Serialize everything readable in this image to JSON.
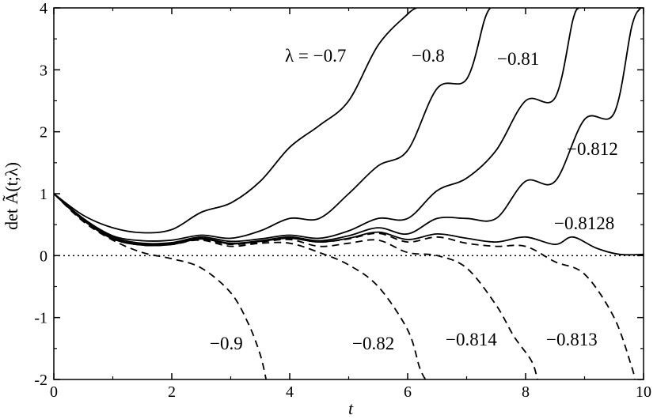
{
  "chart_data": {
    "type": "line",
    "title": "",
    "xlabel": "t",
    "ylabel": "det Ã(t;λ)",
    "xlim": [
      0,
      10
    ],
    "ylim": [
      -2,
      4
    ],
    "x_ticks": [
      0,
      2,
      4,
      6,
      8,
      10
    ],
    "y_ticks": [
      -2,
      -1,
      0,
      1,
      2,
      3,
      4
    ],
    "x_tick_labels": [
      "0",
      "2",
      "4",
      "6",
      "8",
      "10"
    ],
    "y_tick_labels": [
      "-2",
      "-1",
      "0",
      "1",
      "2",
      "3",
      "4"
    ],
    "reference_line": {
      "y": 0,
      "style": "dotted"
    },
    "grid": false,
    "series": [
      {
        "name": "λ = −0.7",
        "style": "solid",
        "points": [
          [
            0,
            1
          ],
          [
            0.5,
            0.65
          ],
          [
            1,
            0.45
          ],
          [
            1.5,
            0.37
          ],
          [
            2,
            0.42
          ],
          [
            2.5,
            0.7
          ],
          [
            3,
            0.85
          ],
          [
            3.5,
            1.2
          ],
          [
            4,
            1.75
          ],
          [
            4.5,
            2.1
          ],
          [
            5,
            2.5
          ],
          [
            5.5,
            3.4
          ],
          [
            6,
            3.9
          ],
          [
            6.15,
            4
          ]
        ]
      },
      {
        "name": "−0.8",
        "style": "solid",
        "points": [
          [
            0,
            1
          ],
          [
            0.5,
            0.6
          ],
          [
            1,
            0.32
          ],
          [
            1.5,
            0.24
          ],
          [
            2,
            0.25
          ],
          [
            2.5,
            0.33
          ],
          [
            3,
            0.28
          ],
          [
            3.5,
            0.4
          ],
          [
            4,
            0.6
          ],
          [
            4.5,
            0.6
          ],
          [
            5,
            1.0
          ],
          [
            5.5,
            1.45
          ],
          [
            6,
            1.7
          ],
          [
            6.5,
            2.7
          ],
          [
            7,
            2.85
          ],
          [
            7.3,
            3.8
          ],
          [
            7.4,
            4
          ]
        ]
      },
      {
        "name": "−0.81",
        "style": "solid",
        "points": [
          [
            0,
            1
          ],
          [
            0.5,
            0.58
          ],
          [
            1,
            0.3
          ],
          [
            1.5,
            0.2
          ],
          [
            2,
            0.21
          ],
          [
            2.5,
            0.3
          ],
          [
            3,
            0.23
          ],
          [
            3.5,
            0.27
          ],
          [
            4,
            0.33
          ],
          [
            4.5,
            0.28
          ],
          [
            5,
            0.4
          ],
          [
            5.5,
            0.6
          ],
          [
            6,
            0.6
          ],
          [
            6.5,
            1.05
          ],
          [
            7,
            1.25
          ],
          [
            7.5,
            1.7
          ],
          [
            8,
            2.5
          ],
          [
            8.5,
            2.55
          ],
          [
            8.8,
            3.8
          ],
          [
            8.9,
            4
          ]
        ]
      },
      {
        "name": "−0.812",
        "style": "solid",
        "points": [
          [
            0,
            1
          ],
          [
            0.5,
            0.57
          ],
          [
            1,
            0.28
          ],
          [
            1.5,
            0.18
          ],
          [
            2,
            0.19
          ],
          [
            2.5,
            0.28
          ],
          [
            3,
            0.2
          ],
          [
            3.5,
            0.24
          ],
          [
            4,
            0.3
          ],
          [
            4.5,
            0.24
          ],
          [
            5,
            0.32
          ],
          [
            5.5,
            0.45
          ],
          [
            6,
            0.35
          ],
          [
            6.5,
            0.6
          ],
          [
            7,
            0.6
          ],
          [
            7.5,
            0.6
          ],
          [
            8,
            1.2
          ],
          [
            8.5,
            1.2
          ],
          [
            9,
            2.2
          ],
          [
            9.5,
            2.3
          ],
          [
            9.8,
            3.7
          ],
          [
            9.95,
            4
          ]
        ]
      },
      {
        "name": "−0.8128",
        "style": "solid",
        "points": [
          [
            0,
            1
          ],
          [
            0.5,
            0.57
          ],
          [
            1,
            0.27
          ],
          [
            1.5,
            0.17
          ],
          [
            2,
            0.18
          ],
          [
            2.5,
            0.27
          ],
          [
            3,
            0.19
          ],
          [
            3.5,
            0.23
          ],
          [
            4,
            0.28
          ],
          [
            4.5,
            0.22
          ],
          [
            5,
            0.28
          ],
          [
            5.5,
            0.38
          ],
          [
            6,
            0.26
          ],
          [
            6.5,
            0.35
          ],
          [
            7,
            0.28
          ],
          [
            7.5,
            0.22
          ],
          [
            8,
            0.3
          ],
          [
            8.5,
            0.18
          ],
          [
            8.8,
            0.3
          ],
          [
            9.2,
            0.12
          ],
          [
            9.6,
            0.02
          ],
          [
            10,
            0.02
          ]
        ]
      },
      {
        "name": "−0.9",
        "style": "dashed",
        "points": [
          [
            0,
            1
          ],
          [
            0.5,
            0.55
          ],
          [
            1,
            0.25
          ],
          [
            1.5,
            0.05
          ],
          [
            2,
            -0.05
          ],
          [
            2.5,
            -0.2
          ],
          [
            3,
            -0.6
          ],
          [
            3.3,
            -1.1
          ],
          [
            3.5,
            -1.6
          ],
          [
            3.6,
            -2
          ]
        ]
      },
      {
        "name": "−0.82",
        "style": "dashed",
        "points": [
          [
            0,
            1
          ],
          [
            0.5,
            0.58
          ],
          [
            1,
            0.28
          ],
          [
            1.5,
            0.18
          ],
          [
            2,
            0.2
          ],
          [
            2.5,
            0.25
          ],
          [
            3,
            0.15
          ],
          [
            3.5,
            0.2
          ],
          [
            4,
            0.2
          ],
          [
            4.5,
            0.05
          ],
          [
            5,
            -0.15
          ],
          [
            5.5,
            -0.5
          ],
          [
            6,
            -1.2
          ],
          [
            6.2,
            -1.8
          ],
          [
            6.3,
            -2
          ]
        ]
      },
      {
        "name": "−0.814",
        "style": "dashed",
        "points": [
          [
            0,
            1
          ],
          [
            0.5,
            0.57
          ],
          [
            1,
            0.27
          ],
          [
            1.5,
            0.17
          ],
          [
            2,
            0.18
          ],
          [
            2.5,
            0.26
          ],
          [
            3,
            0.18
          ],
          [
            3.5,
            0.22
          ],
          [
            4,
            0.26
          ],
          [
            4.5,
            0.15
          ],
          [
            5,
            0.2
          ],
          [
            5.5,
            0.25
          ],
          [
            6,
            0.05
          ],
          [
            6.5,
            0.0
          ],
          [
            7,
            -0.2
          ],
          [
            7.5,
            -0.8
          ],
          [
            7.8,
            -1.3
          ],
          [
            8.1,
            -1.7
          ],
          [
            8.2,
            -2
          ]
        ]
      },
      {
        "name": "−0.813",
        "style": "dashed",
        "points": [
          [
            0,
            1
          ],
          [
            0.5,
            0.57
          ],
          [
            1,
            0.27
          ],
          [
            1.5,
            0.17
          ],
          [
            2,
            0.18
          ],
          [
            2.5,
            0.27
          ],
          [
            3,
            0.19
          ],
          [
            3.5,
            0.23
          ],
          [
            4,
            0.28
          ],
          [
            4.5,
            0.22
          ],
          [
            5,
            0.27
          ],
          [
            5.5,
            0.36
          ],
          [
            6,
            0.22
          ],
          [
            6.5,
            0.3
          ],
          [
            7,
            0.2
          ],
          [
            7.5,
            0.15
          ],
          [
            8,
            0.15
          ],
          [
            8.5,
            -0.1
          ],
          [
            9,
            -0.3
          ],
          [
            9.5,
            -1.0
          ],
          [
            9.8,
            -1.8
          ],
          [
            9.85,
            -2
          ]
        ]
      }
    ]
  }
}
